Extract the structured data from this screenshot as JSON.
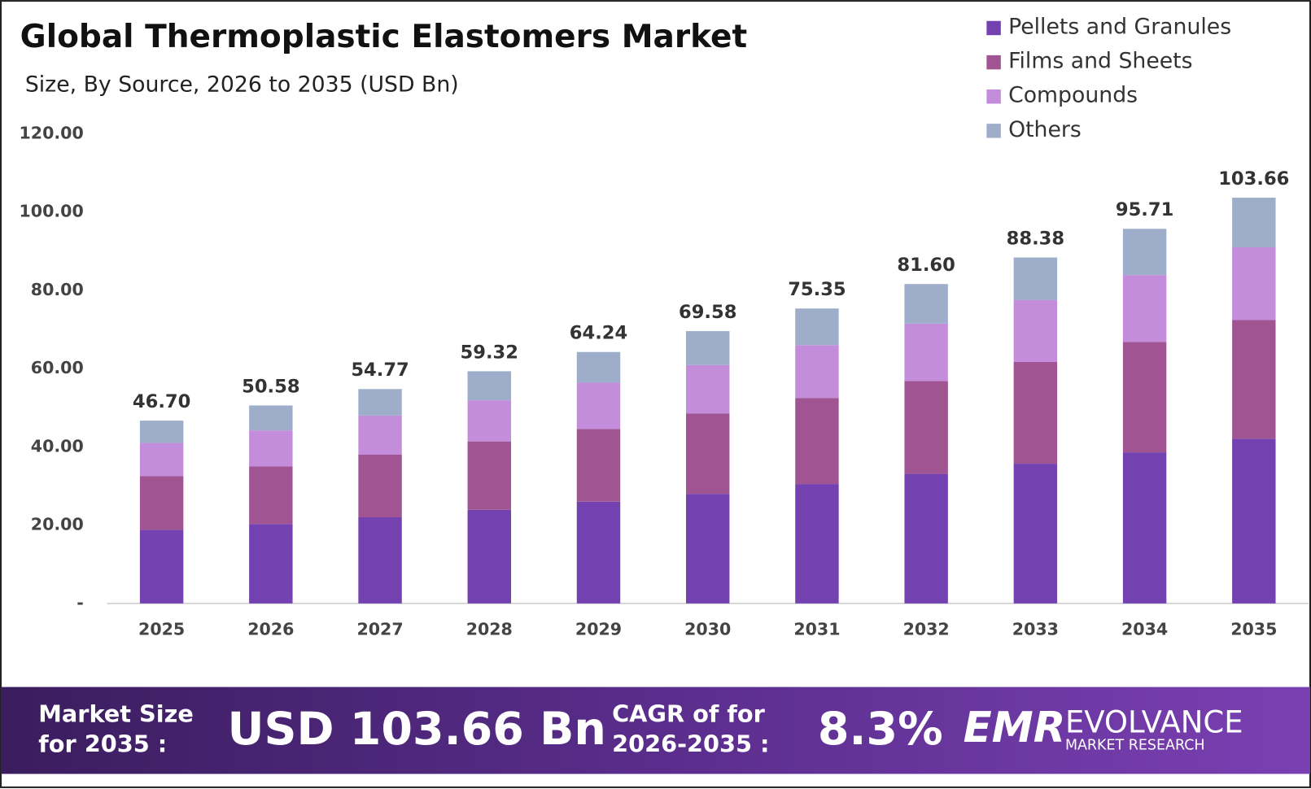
{
  "chart_data": {
    "type": "stacked_bar",
    "title": "Global Thermoplastic Elastomers Market",
    "subtitle": "Size, By Source, 2026 to 2035 (USD Bn)",
    "categories": [
      "2025",
      "2026",
      "2027",
      "2028",
      "2029",
      "2030",
      "2031",
      "2032",
      "2033",
      "2034",
      "2035"
    ],
    "series": [
      {
        "name": "Pellets and Granules",
        "color": "#7442b0",
        "values": [
          18.8,
          20.3,
          22.0,
          23.9,
          26.0,
          28.0,
          30.5,
          33.1,
          35.7,
          38.6,
          42.1
        ]
      },
      {
        "name": "Films and Sheets",
        "color": "#a05592",
        "values": [
          13.7,
          14.7,
          16.0,
          17.5,
          18.6,
          20.5,
          22.0,
          23.7,
          26.0,
          28.2,
          30.3
        ]
      },
      {
        "name": "Compounds",
        "color": "#c48ddc",
        "values": [
          8.5,
          9.2,
          10.0,
          10.5,
          11.8,
          12.4,
          13.5,
          14.7,
          15.8,
          17.1,
          18.6
        ]
      },
      {
        "name": "Others",
        "color": "#9dadca",
        "values": [
          5.7,
          6.38,
          6.77,
          7.42,
          7.84,
          8.68,
          9.35,
          10.1,
          10.88,
          11.81,
          12.66
        ]
      }
    ],
    "totals": [
      46.7,
      50.58,
      54.77,
      59.32,
      64.24,
      69.58,
      75.35,
      81.6,
      88.38,
      95.71,
      103.66
    ],
    "total_labels": [
      "46.70",
      "50.58",
      "54.77",
      "59.32",
      "64.24",
      "69.58",
      "75.35",
      "81.60",
      "88.38",
      "95.71",
      "103.66"
    ],
    "ylim": [
      0,
      120
    ],
    "yticks": [
      {
        "value": 0,
        "label": "-"
      },
      {
        "value": 20,
        "label": "20.00"
      },
      {
        "value": 40,
        "label": "40.00"
      },
      {
        "value": 60,
        "label": "60.00"
      },
      {
        "value": 80,
        "label": "80.00"
      },
      {
        "value": 100,
        "label": "100.00"
      },
      {
        "value": 120,
        "label": "120.00"
      }
    ],
    "grid": false,
    "legend": "top-right"
  },
  "footer": {
    "market_size_label": [
      "Market Size",
      "for 2035 :"
    ],
    "market_size_value": "USD 103.66 Bn",
    "cagr_label": [
      "CAGR of for",
      "2026-2035 :"
    ],
    "cagr_value": "8.3%",
    "logo_mark": "EMR",
    "logo_name": "EVOLVANCE",
    "logo_tagline": "MARKET RESEARCH"
  }
}
